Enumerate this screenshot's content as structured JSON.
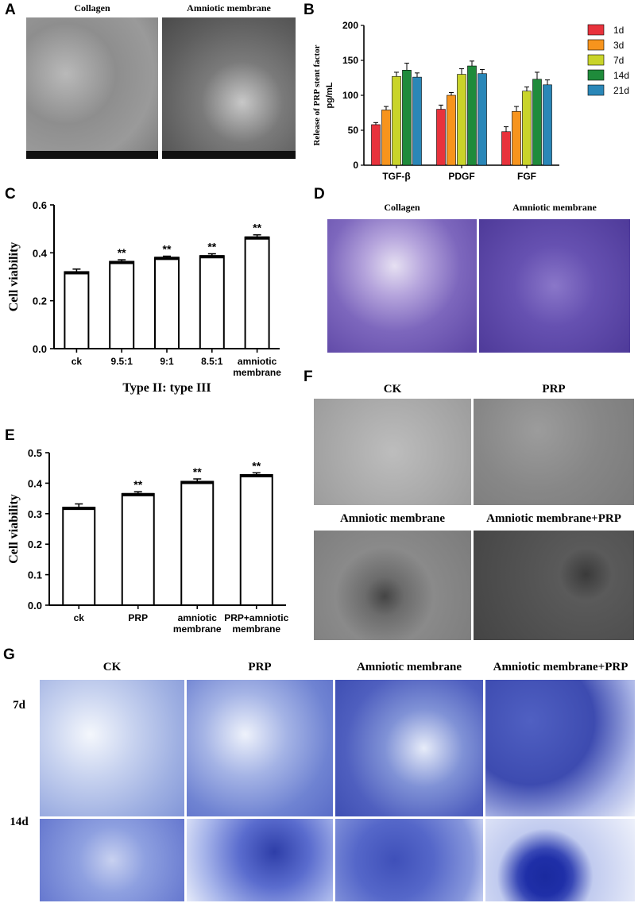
{
  "panels": {
    "A": {
      "letter": "A",
      "labels": [
        "Collagen",
        "Amniotic membrane"
      ]
    },
    "D": {
      "letter": "D",
      "labels": [
        "Collagen",
        "Amniotic membrane"
      ]
    },
    "F": {
      "letter": "F",
      "labels": [
        "CK",
        "PRP",
        "Amniotic membrane",
        "Amniotic membrane+PRP"
      ]
    },
    "G": {
      "letter": "G",
      "column_labels": [
        "CK",
        "PRP",
        "Amniotic membrane",
        "Amniotic membrane+PRP"
      ],
      "row_labels": [
        "7d",
        "14d"
      ]
    }
  },
  "chart_data": [
    {
      "id": "B",
      "letter": "B",
      "type": "bar",
      "ylabel_line1": "Release of PRP stent factor",
      "ylabel_line2": "pg/mL",
      "ylim": [
        0,
        200
      ],
      "yticks": [
        "0",
        "50",
        "100",
        "150",
        "200"
      ],
      "categories": [
        "TGF-β",
        "PDGF",
        "FGF"
      ],
      "legend_position": "right",
      "series": [
        {
          "name": "1d",
          "color": "#e8323c",
          "values": [
            58,
            80,
            48
          ],
          "errors": [
            3,
            6,
            7
          ]
        },
        {
          "name": "3d",
          "color": "#f7941d",
          "values": [
            79,
            100,
            77
          ],
          "errors": [
            5,
            4,
            7
          ]
        },
        {
          "name": "7d",
          "color": "#c9d42a",
          "values": [
            127,
            130,
            106
          ],
          "errors": [
            6,
            8,
            6
          ]
        },
        {
          "name": "14d",
          "color": "#1f8b3b",
          "values": [
            136,
            142,
            123
          ],
          "errors": [
            10,
            7,
            10
          ]
        },
        {
          "name": "21d",
          "color": "#2a87b8",
          "values": [
            126,
            131,
            115
          ],
          "errors": [
            6,
            6,
            7
          ]
        }
      ]
    },
    {
      "id": "C",
      "letter": "C",
      "type": "bar",
      "ylabel": "Cell viability",
      "xlabel": "Type II: type III",
      "ylim": [
        0,
        0.6
      ],
      "yticks": [
        "0.0",
        "0.2",
        "0.4",
        "0.6"
      ],
      "categories": [
        "ck",
        "9.5:1",
        "9:1",
        "8.5:1",
        "amniotic membrane"
      ],
      "values": [
        0.32,
        0.363,
        0.38,
        0.387,
        0.465
      ],
      "errors": [
        0.012,
        0.008,
        0.006,
        0.009,
        0.01
      ],
      "annotations": [
        "",
        "**",
        "**",
        "**",
        "**"
      ]
    },
    {
      "id": "E",
      "letter": "E",
      "type": "bar",
      "ylabel": "Cell viability",
      "ylim": [
        0,
        0.5
      ],
      "yticks": [
        "0.0",
        "0.1",
        "0.2",
        "0.3",
        "0.4",
        "0.5"
      ],
      "categories": [
        "ck",
        "PRP",
        "amniotic membrane",
        "PRP+amniotic membrane"
      ],
      "values": [
        0.32,
        0.365,
        0.405,
        0.427
      ],
      "errors": [
        0.012,
        0.007,
        0.009,
        0.007
      ],
      "annotations": [
        "",
        "**",
        "**",
        "**"
      ]
    }
  ]
}
